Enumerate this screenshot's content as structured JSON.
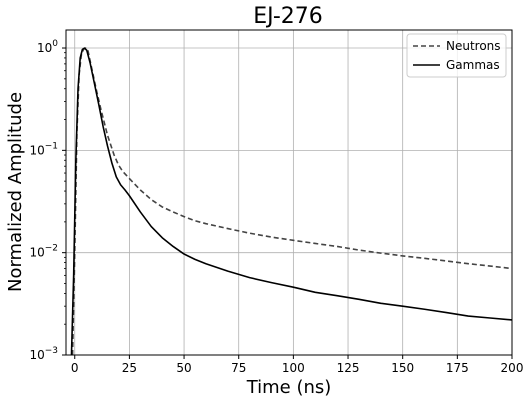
{
  "chart_data": {
    "type": "line",
    "title": "EJ-276",
    "xlabel": "Time (ns)",
    "ylabel": "Normalized Amplitude",
    "xlim": [
      -4,
      200
    ],
    "ylim": [
      0.001,
      1.5
    ],
    "yscale": "log",
    "grid": true,
    "legend_position": "top-right",
    "xticks": [
      0,
      25,
      50,
      75,
      100,
      125,
      150,
      175,
      200
    ],
    "xtick_labels": [
      "0",
      "25",
      "50",
      "75",
      "100",
      "125",
      "150",
      "175",
      "200"
    ],
    "yticks": [
      0.001,
      0.01,
      0.1,
      1
    ],
    "ytick_base": "10",
    "ytick_exponents": [
      "−3",
      "−2",
      "−1",
      "0"
    ],
    "series": [
      {
        "name": "Neutrons",
        "color": "#444444",
        "style": "dashed",
        "x": [
          -1,
          0,
          1,
          2,
          3,
          4,
          5,
          6,
          8,
          10,
          12,
          15,
          18,
          20,
          22,
          25,
          30,
          35,
          40,
          45,
          50,
          55,
          60,
          70,
          80,
          90,
          100,
          110,
          120,
          130,
          140,
          150,
          160,
          170,
          180,
          190,
          200
        ],
        "y": [
          0.001,
          0.01,
          0.15,
          0.55,
          0.85,
          0.97,
          1.0,
          0.95,
          0.6,
          0.38,
          0.25,
          0.14,
          0.09,
          0.072,
          0.062,
          0.053,
          0.041,
          0.033,
          0.028,
          0.025,
          0.0225,
          0.0205,
          0.0192,
          0.0172,
          0.0155,
          0.0142,
          0.0132,
          0.0123,
          0.0115,
          0.0106,
          0.0099,
          0.0093,
          0.0088,
          0.0083,
          0.0078,
          0.0074,
          0.007
        ]
      },
      {
        "name": "Gammas",
        "color": "#000000",
        "style": "solid",
        "x": [
          -1.5,
          -0.5,
          0.5,
          1.5,
          2.5,
          3.5,
          4.5,
          5.5,
          7,
          9,
          11,
          13,
          15,
          17,
          19,
          21,
          23,
          25,
          30,
          35,
          40,
          45,
          50,
          55,
          60,
          70,
          80,
          90,
          100,
          110,
          120,
          130,
          140,
          150,
          160,
          170,
          180,
          190,
          200
        ],
        "y": [
          0.001,
          0.006,
          0.08,
          0.4,
          0.8,
          0.97,
          1.0,
          0.95,
          0.72,
          0.45,
          0.28,
          0.17,
          0.11,
          0.075,
          0.055,
          0.046,
          0.041,
          0.036,
          0.025,
          0.018,
          0.014,
          0.0115,
          0.0097,
          0.0086,
          0.0078,
          0.0066,
          0.0057,
          0.0051,
          0.0046,
          0.0041,
          0.0038,
          0.0035,
          0.0032,
          0.003,
          0.0028,
          0.0026,
          0.0024,
          0.0023,
          0.0022
        ]
      }
    ]
  }
}
